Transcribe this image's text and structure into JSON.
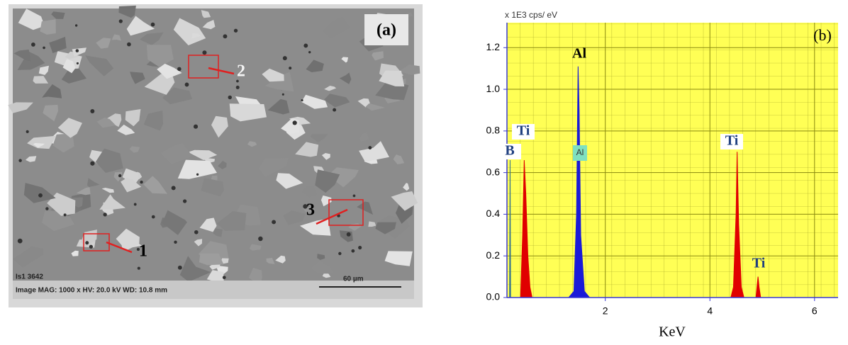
{
  "panel_a": {
    "label": "(a)",
    "markers": [
      "1",
      "2",
      "3"
    ],
    "id_text": "Is1 3642",
    "info": "Image  MAG: 1000 x  HV: 20.0 kV  WD: 10.8 mm",
    "scale_text": "60 µm"
  },
  "chart_data": {
    "type": "area",
    "panel_label": "(b)",
    "y_unit_label": "x 1E3  cps/ eV",
    "x_label": "KeV",
    "xlim": [
      0.12,
      6.45
    ],
    "ylim": [
      0,
      1.32
    ],
    "xticks": [
      2,
      4,
      6
    ],
    "yticks": [
      {
        "value": 0,
        "label": "0.0"
      },
      0.2,
      0.4,
      0.6,
      0.8,
      {
        "value": 1,
        "label": "1.0"
      },
      1.2
    ],
    "grid": true,
    "series": [
      {
        "color": "#2f6f8f",
        "x": [
          0.17,
          0.18,
          0.19
        ],
        "values": [
          0,
          0.66,
          0
        ]
      },
      {
        "color": "#e00000",
        "x": [
          0.38,
          0.42,
          0.45,
          0.48,
          0.52,
          0.56,
          0.6
        ],
        "values": [
          0,
          0.3,
          0.66,
          0.5,
          0.2,
          0.05,
          0
        ]
      },
      {
        "color": "#1a1ad8",
        "x": [
          1.3,
          1.4,
          1.45,
          1.48,
          1.5,
          1.53,
          1.6,
          1.7
        ],
        "values": [
          0,
          0.03,
          0.4,
          1.11,
          0.9,
          0.3,
          0.03,
          0
        ]
      },
      {
        "color": "#e00000",
        "x": [
          4.4,
          4.45,
          4.5,
          4.52,
          4.55,
          4.6,
          4.65
        ],
        "values": [
          0,
          0.05,
          0.4,
          0.7,
          0.35,
          0.05,
          0
        ]
      },
      {
        "color": "#e00000",
        "x": [
          4.88,
          4.92,
          4.94,
          4.97
        ],
        "values": [
          0,
          0.1,
          0.05,
          0
        ]
      }
    ],
    "annotations": [
      "Al",
      "Ti",
      "B",
      "Al",
      "Ti",
      "Ti"
    ]
  }
}
